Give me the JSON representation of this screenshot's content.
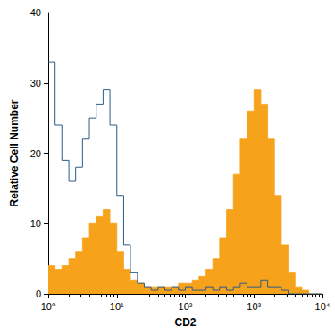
{
  "chart_data": {
    "type": "histogram",
    "x_label": "CD2",
    "y_label": "Relative Cell Number",
    "log": "x",
    "grid": false,
    "bins": [
      1,
      1.26,
      1.58,
      2,
      2.51,
      3.16,
      3.98,
      5.01,
      6.31,
      7.94,
      10,
      12.6,
      15.8,
      20,
      25.1,
      31.6,
      39.8,
      50.1,
      63.1,
      79.4,
      100,
      126,
      158,
      200,
      251,
      316,
      398,
      501,
      631,
      794,
      1000,
      1259,
      1585,
      1995,
      2512,
      3162,
      3981,
      5012,
      6310,
      7943,
      10000
    ],
    "series": [
      {
        "color": "#f7a21b",
        "line_style": "filled",
        "values": [
          4,
          3.5,
          4,
          5,
          6,
          8,
          10,
          11,
          12,
          10,
          6,
          3.5,
          2,
          1.5,
          1,
          1,
          1,
          1,
          1,
          1.5,
          1.5,
          2,
          2.5,
          3.5,
          5,
          8,
          12,
          17,
          22,
          26,
          29,
          27,
          22,
          14,
          7,
          3,
          1,
          0.5,
          0,
          0
        ]
      },
      {
        "color": "#2b5c8a",
        "line_style": "outline",
        "values": [
          33,
          24,
          19,
          16,
          18,
          22,
          25,
          27,
          29,
          24,
          14,
          7,
          3,
          1.5,
          1,
          0.5,
          1,
          0.5,
          1,
          0.5,
          1,
          0.5,
          0.5,
          1,
          0.5,
          1,
          0.5,
          1,
          1.5,
          1,
          1,
          2,
          1,
          1,
          0.5,
          0,
          0,
          0,
          0,
          0
        ]
      }
    ],
    "xlim": [
      1,
      10000
    ],
    "xticks": [
      {
        "value": 1,
        "label": "10⁰"
      },
      {
        "value": 10,
        "label": "10¹"
      },
      {
        "value": 100,
        "label": "10²"
      },
      {
        "value": 1000,
        "label": "10³"
      },
      {
        "value": 10000,
        "label": "10⁴"
      }
    ],
    "ylim": [
      0,
      40
    ],
    "yticks": [
      0,
      10,
      20,
      30,
      40
    ]
  }
}
